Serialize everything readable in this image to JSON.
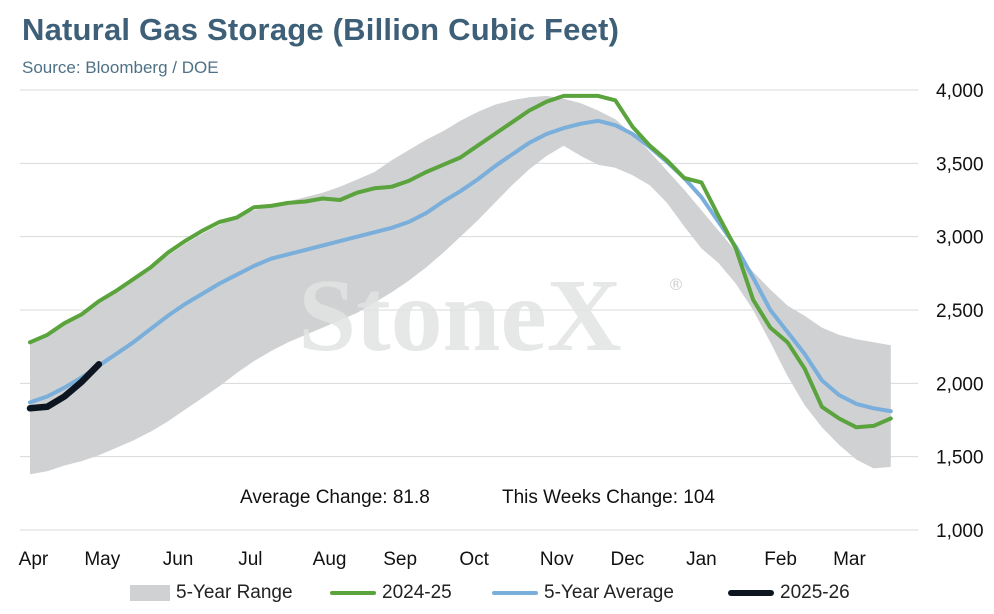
{
  "header": {
    "title": "Natural Gas Storage (Billion Cubic Feet)",
    "subtitle": "Source: Bloomberg / DOE"
  },
  "watermark": "StoneX",
  "annotations": {
    "average_change": "Average Change: 81.8",
    "weekly_change": "This Weeks Change: 104"
  },
  "colors": {
    "range": "#cfd1d2",
    "series_2024": "#5aa33d",
    "series_avg": "#7aaedb",
    "series_2025": "#0d1620",
    "title": "#3e5f78"
  },
  "chart_data": {
    "type": "line",
    "title": "Natural Gas Storage (Billion Cubic Feet)",
    "ylim": [
      1000,
      4000
    ],
    "yticks": [
      1000,
      1500,
      2000,
      2500,
      3000,
      3500,
      4000
    ],
    "ytick_labels": [
      "1,000",
      "1,500",
      "2,000",
      "2,500",
      "3,000",
      "3,500",
      "4,000"
    ],
    "y_axis_side": "right",
    "grid": true,
    "x_range_weeks": [
      0,
      51
    ],
    "month_ticks": [
      {
        "label": "Apr",
        "week": 0.2
      },
      {
        "label": "May",
        "week": 4.2
      },
      {
        "label": "Jun",
        "week": 8.6
      },
      {
        "label": "Jul",
        "week": 12.8
      },
      {
        "label": "Aug",
        "week": 17.4
      },
      {
        "label": "Sep",
        "week": 21.5
      },
      {
        "label": "Oct",
        "week": 25.8
      },
      {
        "label": "Nov",
        "week": 30.6
      },
      {
        "label": "Dec",
        "week": 34.7
      },
      {
        "label": "Jan",
        "week": 39.0
      },
      {
        "label": "Feb",
        "week": 43.6
      },
      {
        "label": "Mar",
        "week": 47.6
      }
    ],
    "range": {
      "name": "5-Year Range",
      "x": [
        0,
        1,
        2,
        3,
        4,
        5,
        6,
        7,
        8,
        9,
        10,
        11,
        12,
        13,
        14,
        15,
        16,
        17,
        18,
        19,
        20,
        21,
        22,
        23,
        24,
        25,
        26,
        27,
        28,
        29,
        30,
        31,
        32,
        33,
        34,
        35,
        36,
        37,
        38,
        39,
        40,
        41,
        42,
        43,
        44,
        45,
        46,
        47,
        48,
        49,
        50
      ],
      "upper": [
        2280,
        2330,
        2400,
        2470,
        2550,
        2630,
        2710,
        2790,
        2870,
        2950,
        3020,
        3080,
        3130,
        3180,
        3210,
        3240,
        3270,
        3300,
        3340,
        3390,
        3440,
        3520,
        3590,
        3660,
        3720,
        3790,
        3850,
        3900,
        3930,
        3950,
        3960,
        3940,
        3910,
        3860,
        3800,
        3700,
        3580,
        3450,
        3320,
        3180,
        3040,
        2900,
        2760,
        2640,
        2530,
        2460,
        2380,
        2330,
        2300,
        2280,
        2260
      ],
      "lower": [
        1380,
        1400,
        1440,
        1470,
        1510,
        1560,
        1610,
        1670,
        1740,
        1820,
        1900,
        1980,
        2070,
        2150,
        2220,
        2280,
        2330,
        2380,
        2430,
        2480,
        2550,
        2620,
        2700,
        2790,
        2890,
        3000,
        3110,
        3230,
        3350,
        3460,
        3550,
        3620,
        3550,
        3490,
        3470,
        3420,
        3350,
        3230,
        3070,
        2920,
        2820,
        2680,
        2500,
        2280,
        2050,
        1850,
        1700,
        1580,
        1480,
        1420,
        1430
      ]
    },
    "series": [
      {
        "name": "2024-25",
        "x": [
          0,
          1,
          2,
          3,
          4,
          5,
          6,
          7,
          8,
          9,
          10,
          11,
          12,
          13,
          14,
          15,
          16,
          17,
          18,
          19,
          20,
          21,
          22,
          23,
          24,
          25,
          26,
          27,
          28,
          29,
          30,
          31,
          32,
          33,
          34,
          35,
          36,
          37,
          38,
          39,
          40,
          41,
          42,
          43,
          44,
          45,
          46,
          47,
          48,
          49,
          50
        ],
        "values": [
          2280,
          2330,
          2410,
          2470,
          2560,
          2630,
          2710,
          2790,
          2890,
          2970,
          3040,
          3100,
          3130,
          3200,
          3210,
          3230,
          3240,
          3260,
          3250,
          3300,
          3330,
          3340,
          3380,
          3440,
          3490,
          3540,
          3620,
          3700,
          3780,
          3860,
          3920,
          3960,
          3960,
          3960,
          3930,
          3750,
          3620,
          3520,
          3400,
          3370,
          3140,
          2920,
          2570,
          2380,
          2280,
          2100,
          1840,
          1760,
          1700,
          1710,
          1760
        ]
      },
      {
        "name": "5-Year Average",
        "x": [
          0,
          1,
          2,
          3,
          4,
          5,
          6,
          7,
          8,
          9,
          10,
          11,
          12,
          13,
          14,
          15,
          16,
          17,
          18,
          19,
          20,
          21,
          22,
          23,
          24,
          25,
          26,
          27,
          28,
          29,
          30,
          31,
          32,
          33,
          34,
          35,
          36,
          37,
          38,
          39,
          40,
          41,
          42,
          43,
          44,
          45,
          46,
          47,
          48,
          49,
          50
        ],
        "values": [
          1870,
          1910,
          1970,
          2040,
          2120,
          2200,
          2280,
          2370,
          2460,
          2540,
          2610,
          2680,
          2740,
          2800,
          2850,
          2880,
          2910,
          2940,
          2970,
          3000,
          3030,
          3060,
          3100,
          3160,
          3240,
          3310,
          3390,
          3480,
          3560,
          3640,
          3700,
          3740,
          3770,
          3790,
          3760,
          3700,
          3610,
          3510,
          3400,
          3270,
          3100,
          2930,
          2720,
          2500,
          2350,
          2200,
          2020,
          1920,
          1860,
          1830,
          1810
        ]
      },
      {
        "name": "2025-26",
        "x": [
          0,
          1,
          2,
          3,
          4
        ],
        "values": [
          1830,
          1840,
          1910,
          2010,
          2130
        ]
      }
    ]
  },
  "legend": {
    "items": [
      {
        "label": "5-Year Range"
      },
      {
        "label": "2024-25"
      },
      {
        "label": "5-Year Average"
      },
      {
        "label": "2025-26"
      }
    ]
  }
}
